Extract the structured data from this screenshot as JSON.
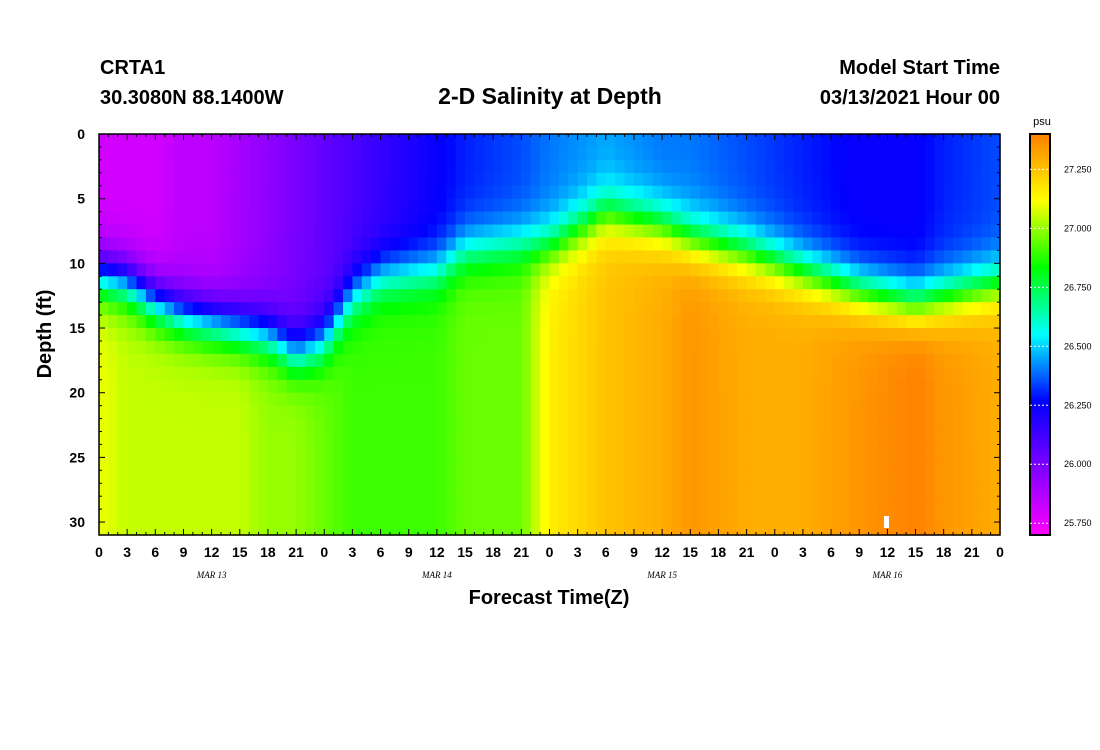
{
  "header": {
    "station_id": "CRTA1",
    "station_coords": "30.3080N 88.1400W",
    "title": "2-D Salinity at Depth",
    "model_label": "Model Start Time",
    "model_time": "03/13/2021 Hour 00"
  },
  "chart_data": {
    "type": "heatmap",
    "title": "2-D Salinity at Depth",
    "xlabel": "Forecast Time(Z)",
    "ylabel": "Depth (ft)",
    "x_unit": "hours since model start",
    "xlim": [
      0,
      96
    ],
    "ylim": [
      0,
      31
    ],
    "y_inverted": true,
    "x_tick_labels": [
      "0",
      "3",
      "6",
      "9",
      "12",
      "15",
      "18",
      "21",
      "0",
      "3",
      "6",
      "9",
      "12",
      "15",
      "18",
      "21",
      "0",
      "3",
      "6",
      "9",
      "12",
      "15",
      "18",
      "21",
      "0",
      "3",
      "6",
      "9",
      "12",
      "15",
      "18",
      "21",
      "0"
    ],
    "day_labels": [
      {
        "hour": 12,
        "label": "MAR 13"
      },
      {
        "hour": 36,
        "label": "MAR 14"
      },
      {
        "hour": 60,
        "label": "MAR 15"
      },
      {
        "hour": 84,
        "label": "MAR 16"
      }
    ],
    "y_ticks": [
      0,
      5,
      10,
      15,
      20,
      25,
      30
    ],
    "colorbar": {
      "unit": "psu",
      "range": [
        25.7,
        27.4
      ],
      "ticks": [
        "25.750",
        "26.000",
        "26.250",
        "26.500",
        "26.750",
        "27.000",
        "27.250"
      ],
      "colors": [
        "#ff00ff",
        "#8000ff",
        "#0000ff",
        "#00ffff",
        "#00ff00",
        "#ffff00",
        "#ff8000"
      ]
    },
    "columns": [
      {
        "hour": 0,
        "surface": 25.8,
        "halocline_depth": 11.0,
        "width": 2.5,
        "bottom": 27.1
      },
      {
        "hour": 3,
        "surface": 25.8,
        "halocline_depth": 11.5,
        "width": 2.5,
        "bottom": 27.05
      },
      {
        "hour": 6,
        "surface": 25.8,
        "halocline_depth": 13.0,
        "width": 2.5,
        "bottom": 27.05
      },
      {
        "hour": 9,
        "surface": 25.85,
        "halocline_depth": 14.0,
        "width": 2.5,
        "bottom": 27.05
      },
      {
        "hour": 12,
        "surface": 25.85,
        "halocline_depth": 14.5,
        "width": 2.5,
        "bottom": 27.05
      },
      {
        "hour": 15,
        "surface": 25.9,
        "halocline_depth": 15.0,
        "width": 2.5,
        "bottom": 27.05
      },
      {
        "hour": 18,
        "surface": 25.95,
        "halocline_depth": 15.5,
        "width": 2.5,
        "bottom": 27.0
      },
      {
        "hour": 21,
        "surface": 26.0,
        "halocline_depth": 17.0,
        "width": 2.5,
        "bottom": 27.0
      },
      {
        "hour": 24,
        "surface": 26.05,
        "halocline_depth": 16.0,
        "width": 2.5,
        "bottom": 26.95
      },
      {
        "hour": 27,
        "surface": 26.1,
        "halocline_depth": 12.5,
        "width": 2.5,
        "bottom": 26.9
      },
      {
        "hour": 30,
        "surface": 26.15,
        "halocline_depth": 11.0,
        "width": 2.5,
        "bottom": 26.9
      },
      {
        "hour": 36,
        "surface": 26.25,
        "halocline_depth": 10.5,
        "width": 2.5,
        "bottom": 26.9
      },
      {
        "hour": 39,
        "surface": 26.3,
        "halocline_depth": 9.0,
        "width": 2.5,
        "bottom": 26.95
      },
      {
        "hour": 45,
        "surface": 26.35,
        "halocline_depth": 8.5,
        "width": 2.5,
        "bottom": 26.95
      },
      {
        "hour": 48,
        "surface": 26.4,
        "halocline_depth": 8.5,
        "width": 2.5,
        "bottom": 27.15
      },
      {
        "hour": 54,
        "surface": 26.45,
        "halocline_depth": 6.0,
        "width": 2.5,
        "bottom": 27.25
      },
      {
        "hour": 60,
        "surface": 26.4,
        "halocline_depth": 7.0,
        "width": 2.5,
        "bottom": 27.3
      },
      {
        "hour": 63,
        "surface": 26.4,
        "halocline_depth": 8.0,
        "width": 2.5,
        "bottom": 27.35
      },
      {
        "hour": 69,
        "surface": 26.35,
        "halocline_depth": 9.0,
        "width": 2.5,
        "bottom": 27.3
      },
      {
        "hour": 75,
        "surface": 26.3,
        "halocline_depth": 10.5,
        "width": 2.5,
        "bottom": 27.3
      },
      {
        "hour": 81,
        "surface": 26.25,
        "halocline_depth": 12.0,
        "width": 2.5,
        "bottom": 27.35
      },
      {
        "hour": 87,
        "surface": 26.25,
        "halocline_depth": 13.0,
        "width": 2.5,
        "bottom": 27.4
      },
      {
        "hour": 90,
        "surface": 26.3,
        "halocline_depth": 12.5,
        "width": 2.5,
        "bottom": 27.35
      },
      {
        "hour": 96,
        "surface": 26.35,
        "halocline_depth": 11.5,
        "width": 2.5,
        "bottom": 27.3
      }
    ]
  }
}
